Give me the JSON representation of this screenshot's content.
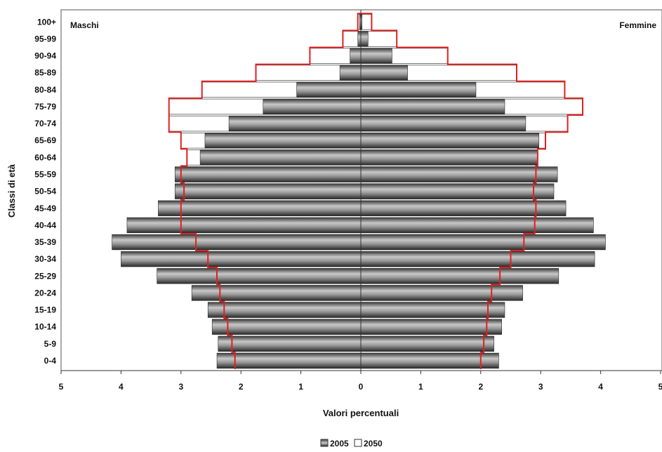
{
  "chart_data": {
    "type": "bar",
    "subtype": "population-pyramid",
    "xlabel": "Valori percentuali",
    "ylabel": "Classi di età",
    "left_label": "Maschi",
    "right_label": "Femmine",
    "xlim": [
      -5,
      5
    ],
    "x_ticks": [
      "5",
      "4",
      "3",
      "2",
      "1",
      "0",
      "1",
      "2",
      "3",
      "4",
      "5"
    ],
    "categories": [
      "0-4",
      "5-9",
      "10-14",
      "15-19",
      "20-24",
      "25-29",
      "30-34",
      "35-39",
      "40-44",
      "45-49",
      "50-54",
      "55-59",
      "60-64",
      "65-69",
      "70-74",
      "75-79",
      "80-84",
      "85-89",
      "90-94",
      "95-99",
      "100+"
    ],
    "series": [
      {
        "name": "2005",
        "color": "#8c8c8c",
        "males": [
          2.4,
          2.38,
          2.48,
          2.55,
          2.82,
          3.4,
          4.0,
          4.15,
          3.9,
          3.38,
          3.1,
          3.1,
          2.68,
          2.6,
          2.2,
          1.63,
          1.07,
          0.35,
          0.18,
          0.05,
          0.02
        ],
        "females": [
          2.3,
          2.22,
          2.35,
          2.4,
          2.7,
          3.3,
          3.9,
          4.08,
          3.88,
          3.42,
          3.22,
          3.28,
          2.95,
          2.97,
          2.75,
          2.4,
          1.92,
          0.78,
          0.52,
          0.12,
          0.02
        ]
      },
      {
        "name": "2050",
        "color": "#ffffff",
        "males": [
          2.1,
          2.15,
          2.22,
          2.28,
          2.35,
          2.4,
          2.55,
          2.75,
          3.0,
          3.0,
          2.95,
          3.0,
          2.9,
          3.0,
          3.2,
          3.2,
          2.65,
          1.75,
          0.85,
          0.3,
          0.05
        ],
        "females": [
          2.0,
          2.05,
          2.1,
          2.12,
          2.18,
          2.32,
          2.5,
          2.72,
          2.9,
          2.92,
          2.88,
          2.92,
          2.95,
          3.08,
          3.45,
          3.7,
          3.4,
          2.6,
          1.45,
          0.6,
          0.18
        ]
      }
    ],
    "outline_color": "#e02020",
    "grid": false,
    "legend": {
      "placement": "bottom-center",
      "entries": [
        "2005",
        "2050"
      ]
    }
  }
}
